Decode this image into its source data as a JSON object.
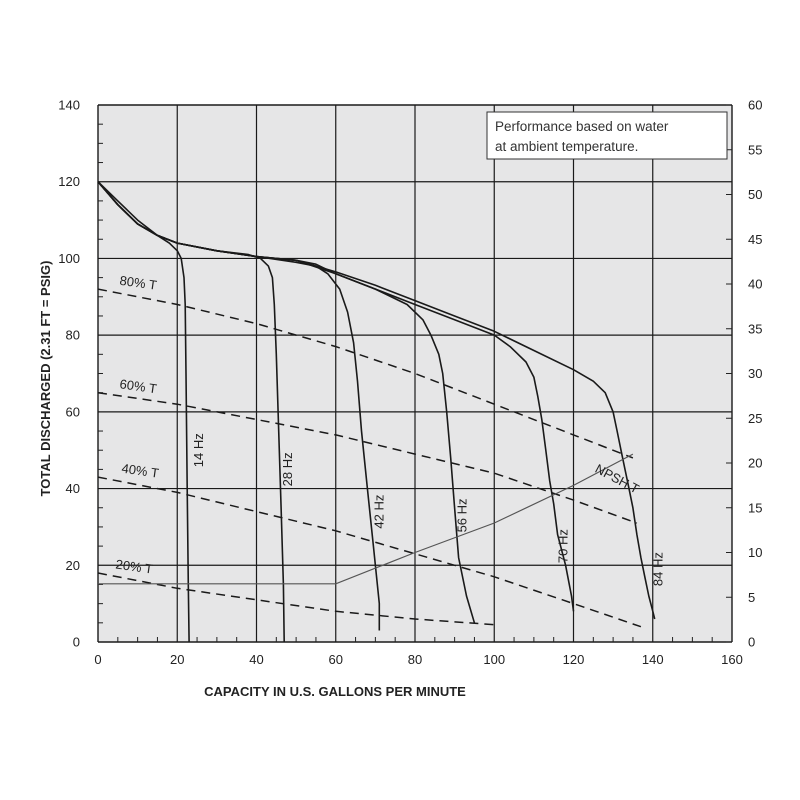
{
  "chart_data": {
    "type": "line",
    "xlabel": "CAPACITY IN U.S. GALLONS PER MINUTE",
    "ylabel": "TOTAL DISCHARGED (2.31 FT = PSIG)",
    "xlim": [
      0,
      160
    ],
    "ylim": [
      0,
      140
    ],
    "y2lim": [
      0,
      60
    ],
    "x_ticks": [
      "0",
      "20",
      "40",
      "60",
      "80",
      "100",
      "120",
      "140",
      "160"
    ],
    "y_ticks": [
      "0",
      "20",
      "40",
      "60",
      "80",
      "100",
      "120",
      "140"
    ],
    "y2_ticks": [
      "0",
      "5",
      "10",
      "15",
      "20",
      "25",
      "30",
      "35",
      "40",
      "45",
      "50",
      "55",
      "60"
    ],
    "grid": true,
    "background": "#e6e6e7",
    "annotation": [
      "Performance based on water",
      "at ambient temperature."
    ],
    "speed_curves": [
      {
        "label": "14 Hz",
        "points": [
          [
            0,
            120
          ],
          [
            5,
            115
          ],
          [
            10,
            110
          ],
          [
            15,
            106
          ],
          [
            18,
            104
          ],
          [
            20,
            102
          ],
          [
            21,
            100
          ],
          [
            21.7,
            95
          ],
          [
            22,
            88
          ],
          [
            22.2,
            70
          ],
          [
            22.5,
            40
          ],
          [
            22.8,
            15
          ],
          [
            23,
            0
          ]
        ]
      },
      {
        "label": "28 Hz",
        "points": [
          [
            0,
            120
          ],
          [
            5,
            114
          ],
          [
            10,
            109
          ],
          [
            15,
            106
          ],
          [
            20,
            104
          ],
          [
            30,
            102
          ],
          [
            38,
            101
          ],
          [
            41,
            100
          ],
          [
            43,
            98
          ],
          [
            44,
            95
          ],
          [
            44.5,
            88
          ],
          [
            45,
            75
          ],
          [
            45.6,
            55
          ],
          [
            46.2,
            35
          ],
          [
            46.8,
            15
          ],
          [
            47,
            0
          ]
        ]
      },
      {
        "label": "42 Hz",
        "points": [
          [
            0,
            120
          ],
          [
            5,
            114
          ],
          [
            10,
            109
          ],
          [
            15,
            106
          ],
          [
            20,
            104
          ],
          [
            30,
            102
          ],
          [
            40,
            100.5
          ],
          [
            50,
            99
          ],
          [
            55,
            98
          ],
          [
            58,
            96
          ],
          [
            61,
            92
          ],
          [
            63,
            86
          ],
          [
            64.5,
            78
          ],
          [
            65.5,
            68
          ],
          [
            66.5,
            55
          ],
          [
            68,
            40
          ],
          [
            69.5,
            25
          ],
          [
            71,
            10
          ],
          [
            71,
            3
          ]
        ]
      },
      {
        "label": "56 Hz",
        "points": [
          [
            0,
            120
          ],
          [
            5,
            114
          ],
          [
            10,
            109
          ],
          [
            15,
            106
          ],
          [
            20,
            104
          ],
          [
            30,
            102
          ],
          [
            40,
            100.5
          ],
          [
            50,
            99.5
          ],
          [
            55,
            98.5
          ],
          [
            60,
            96
          ],
          [
            70,
            92
          ],
          [
            78,
            88
          ],
          [
            82,
            84
          ],
          [
            84,
            80
          ],
          [
            86,
            75
          ],
          [
            87,
            70
          ],
          [
            88,
            60
          ],
          [
            89,
            48
          ],
          [
            90,
            35
          ],
          [
            91,
            22
          ],
          [
            93,
            12
          ],
          [
            95,
            5
          ]
        ]
      },
      {
        "label": "70 Hz",
        "points": [
          [
            0,
            120
          ],
          [
            5,
            114
          ],
          [
            10,
            109
          ],
          [
            15,
            106
          ],
          [
            20,
            104
          ],
          [
            30,
            102
          ],
          [
            40,
            100.5
          ],
          [
            50,
            99.5
          ],
          [
            60,
            96
          ],
          [
            70,
            92
          ],
          [
            80,
            88
          ],
          [
            90,
            84
          ],
          [
            100,
            80
          ],
          [
            104,
            77
          ],
          [
            108,
            73
          ],
          [
            110,
            69
          ],
          [
            111,
            64
          ],
          [
            112,
            58
          ],
          [
            113,
            50
          ],
          [
            114,
            42
          ],
          [
            115,
            36
          ],
          [
            116,
            28
          ],
          [
            118,
            20
          ],
          [
            119.5,
            12
          ],
          [
            120,
            8
          ]
        ]
      },
      {
        "label": "84 Hz",
        "points": [
          [
            0,
            120
          ],
          [
            5,
            114
          ],
          [
            10,
            109
          ],
          [
            15,
            106
          ],
          [
            20,
            104
          ],
          [
            30,
            102
          ],
          [
            40,
            100.5
          ],
          [
            50,
            99.5
          ],
          [
            60,
            96.5
          ],
          [
            70,
            93
          ],
          [
            80,
            89
          ],
          [
            90,
            85
          ],
          [
            100,
            81
          ],
          [
            110,
            76
          ],
          [
            120,
            71
          ],
          [
            125,
            68
          ],
          [
            128,
            65
          ],
          [
            130,
            60
          ],
          [
            131,
            55
          ],
          [
            132,
            50
          ],
          [
            133,
            45
          ],
          [
            134,
            40
          ],
          [
            135,
            35
          ],
          [
            136,
            28
          ],
          [
            137,
            22
          ],
          [
            138,
            17
          ],
          [
            139,
            12
          ],
          [
            140,
            8
          ],
          [
            140.5,
            6
          ]
        ]
      }
    ],
    "efficiency_curves": [
      {
        "label": "80% T",
        "points": [
          [
            0,
            92
          ],
          [
            20,
            88
          ],
          [
            40,
            83
          ],
          [
            60,
            77
          ],
          [
            80,
            70
          ],
          [
            100,
            62
          ],
          [
            120,
            54
          ],
          [
            135,
            48
          ]
        ]
      },
      {
        "label": "60% T",
        "points": [
          [
            0,
            65
          ],
          [
            20,
            62
          ],
          [
            40,
            58
          ],
          [
            60,
            54
          ],
          [
            80,
            49
          ],
          [
            100,
            44
          ],
          [
            120,
            37
          ],
          [
            136,
            31
          ]
        ]
      },
      {
        "label": "40% T",
        "points": [
          [
            0,
            43
          ],
          [
            20,
            39
          ],
          [
            40,
            34
          ],
          [
            60,
            29
          ],
          [
            80,
            23
          ],
          [
            100,
            17
          ],
          [
            120,
            10
          ],
          [
            137,
            4
          ]
        ]
      },
      {
        "label": "20% T",
        "points": [
          [
            0,
            18
          ],
          [
            20,
            14
          ],
          [
            40,
            11
          ],
          [
            60,
            8
          ],
          [
            80,
            6
          ],
          [
            100,
            4.5
          ]
        ]
      }
    ],
    "npsh_curve": {
      "label": "NPSH T",
      "axis": "right",
      "points": [
        [
          0,
          6.5
        ],
        [
          20,
          6.5
        ],
        [
          40,
          6.5
        ],
        [
          60,
          6.5
        ],
        [
          80,
          10
        ],
        [
          100,
          13.3
        ],
        [
          120,
          17.5
        ],
        [
          135,
          21
        ]
      ]
    }
  }
}
